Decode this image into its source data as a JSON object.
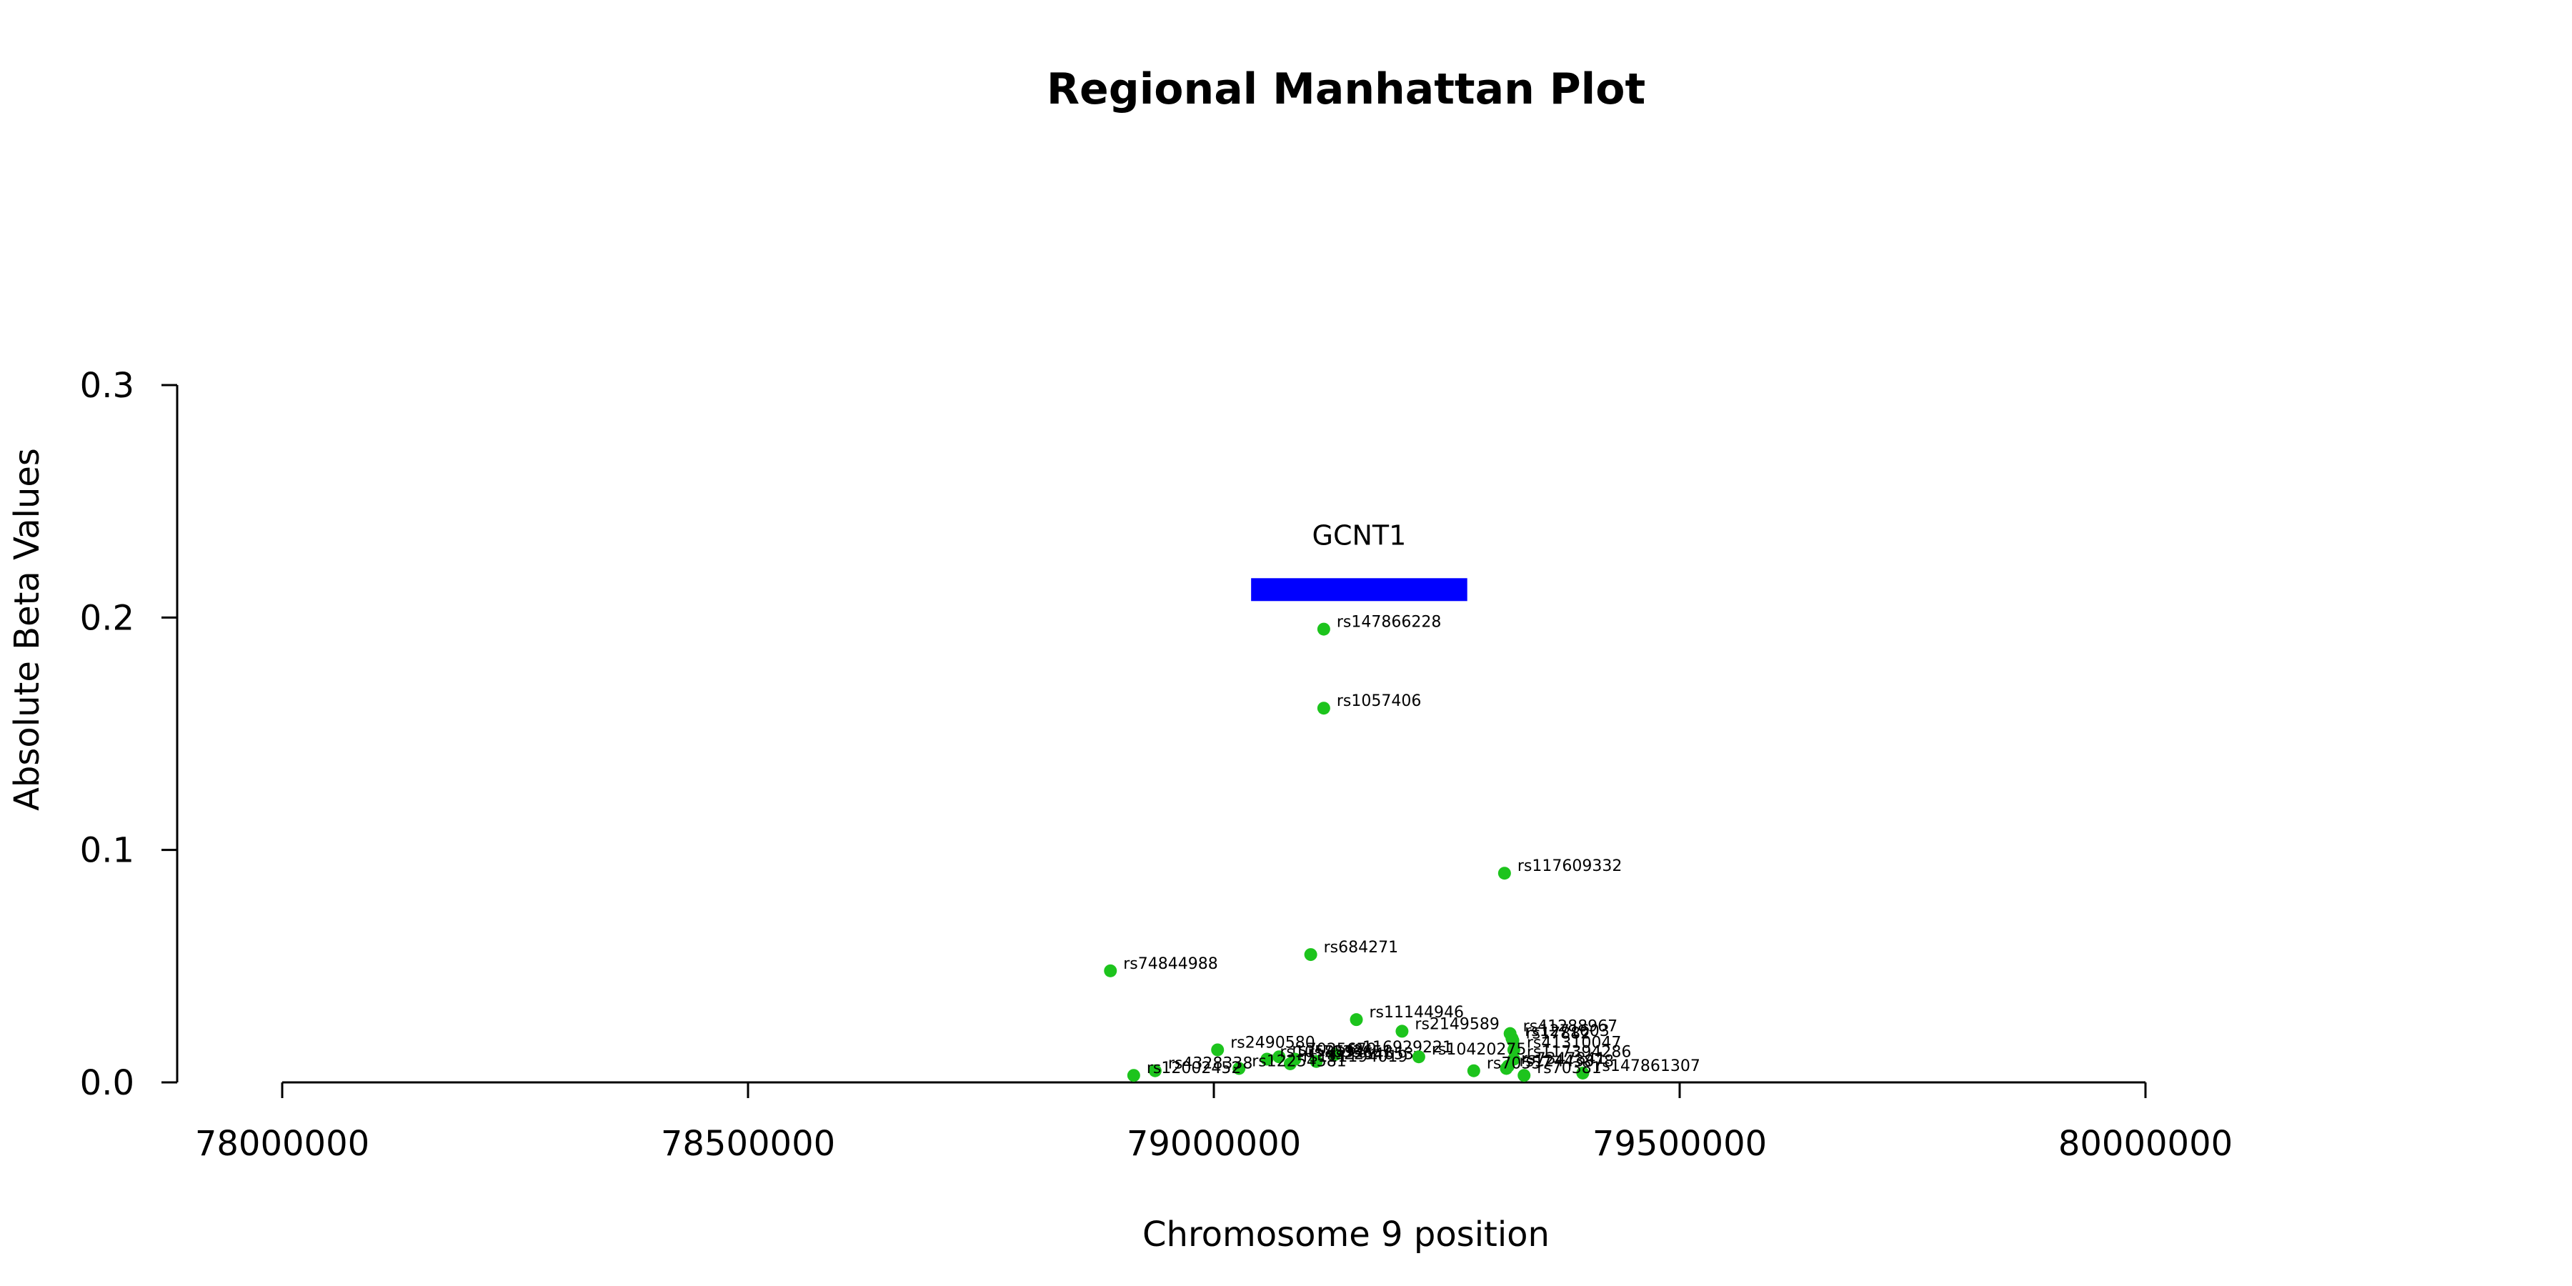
{
  "chart_data": {
    "type": "scatter",
    "title": "Regional Manhattan Plot",
    "xlabel": "Chromosome 9 position",
    "ylabel": "Absolute Beta Values",
    "xlim": [
      78000000,
      80000000
    ],
    "ylim": [
      0,
      0.3
    ],
    "xticks": [
      78000000,
      78500000,
      79000000,
      79500000,
      80000000
    ],
    "xtick_labels": [
      "78000000",
      "78500000",
      "79000000",
      "79500000",
      "80000000"
    ],
    "yticks": [
      0.0,
      0.1,
      0.2,
      0.3
    ],
    "ytick_labels": [
      "0.0",
      "0.1",
      "0.2",
      "0.3"
    ],
    "grid": false,
    "point_color": "#1DC41D",
    "gene": {
      "name": "GCNT1",
      "start": 79040000,
      "end": 79272000,
      "y": 0.212,
      "color": "#0000FF"
    },
    "points": [
      {
        "label": "rs147866228",
        "x": 79118000,
        "y": 0.195
      },
      {
        "label": "rs1057406",
        "x": 79118000,
        "y": 0.161
      },
      {
        "label": "rs117609332",
        "x": 79312000,
        "y": 0.09
      },
      {
        "label": "rs684271",
        "x": 79104000,
        "y": 0.055
      },
      {
        "label": "rs74844988",
        "x": 78889000,
        "y": 0.048
      },
      {
        "label": "rs11144946",
        "x": 79153000,
        "y": 0.027
      },
      {
        "label": "rs2149589",
        "x": 79202000,
        "y": 0.022
      },
      {
        "label": "rs41288967",
        "x": 79318000,
        "y": 0.021
      },
      {
        "label": "rs1271603",
        "x": 79320000,
        "y": 0.019
      },
      {
        "label": "rs17882",
        "x": 79321000,
        "y": 0.018
      },
      {
        "label": "rs41310047",
        "x": 79322000,
        "y": 0.014
      },
      {
        "label": "rs2490580",
        "x": 79004000,
        "y": 0.014
      },
      {
        "label": "rs116929221",
        "x": 79130000,
        "y": 0.012
      },
      {
        "label": "rs7025679",
        "x": 79070000,
        "y": 0.011
      },
      {
        "label": "rs7033651",
        "x": 79087000,
        "y": 0.01
      },
      {
        "label": "rs10420275",
        "x": 79220000,
        "y": 0.011
      },
      {
        "label": "rs117394286",
        "x": 79322000,
        "y": 0.01
      },
      {
        "label": "rs1058594",
        "x": 79057000,
        "y": 0.01
      },
      {
        "label": "rs2254653",
        "x": 79110000,
        "y": 0.009
      },
      {
        "label": "rs111194019",
        "x": 79082000,
        "y": 0.008
      },
      {
        "label": "rs7347841",
        "x": 79316000,
        "y": 0.007
      },
      {
        "label": "rs12443878",
        "x": 79314000,
        "y": 0.006
      },
      {
        "label": "rs12254581",
        "x": 79027000,
        "y": 0.006
      },
      {
        "label": "rs70557",
        "x": 79279000,
        "y": 0.005
      },
      {
        "label": "rs4328338",
        "x": 78937000,
        "y": 0.005
      },
      {
        "label": "rs147861307",
        "x": 79396000,
        "y": 0.004
      },
      {
        "label": "rs12002452",
        "x": 78914000,
        "y": 0.003
      },
      {
        "label": "rs70381",
        "x": 79333000,
        "y": 0.003
      }
    ]
  }
}
